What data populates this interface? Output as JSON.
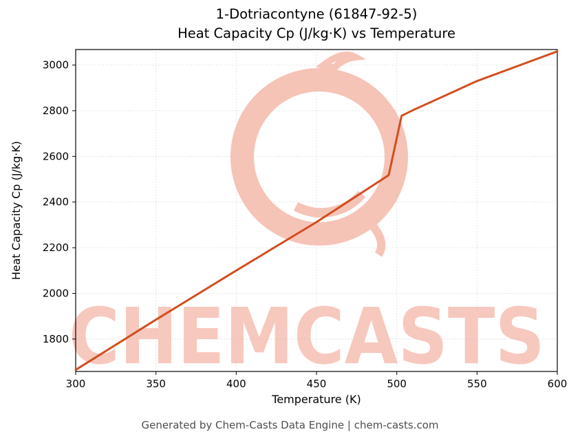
{
  "watermark": {
    "text": "CHEMCASTS",
    "text_color": "#f7c8be",
    "logo_color": "#f6c3b7"
  },
  "footer": {
    "text": "Generated by Chem-Casts Data Engine | chem-casts.com"
  },
  "chart_data": {
    "type": "line",
    "title": "1-Dotriacontyne (61847-92-5)",
    "subtitle": "Heat Capacity Cp (J/kg·K) vs Temperature",
    "xlabel": "Temperature (K)",
    "ylabel": "Heat Capacity Cp (J/kg·K)",
    "xlim": [
      300,
      600
    ],
    "ylim": [
      1658,
      3068
    ],
    "xticks": [
      300,
      350,
      400,
      450,
      500,
      550,
      600
    ],
    "yticks": [
      1800,
      2000,
      2200,
      2400,
      2600,
      2800,
      3000
    ],
    "grid": true,
    "grid_style": "dotted",
    "legend": null,
    "line_color": "#d24e1f",
    "line_width": 3,
    "series": [
      {
        "name": "Heat Capacity Cp",
        "x": [
          300,
          350,
          400,
          450,
          495,
          503,
          510,
          550,
          600
        ],
        "y": [
          1665,
          1885,
          2100,
          2312,
          2518,
          2778,
          2802,
          2930,
          3060
        ]
      }
    ]
  }
}
